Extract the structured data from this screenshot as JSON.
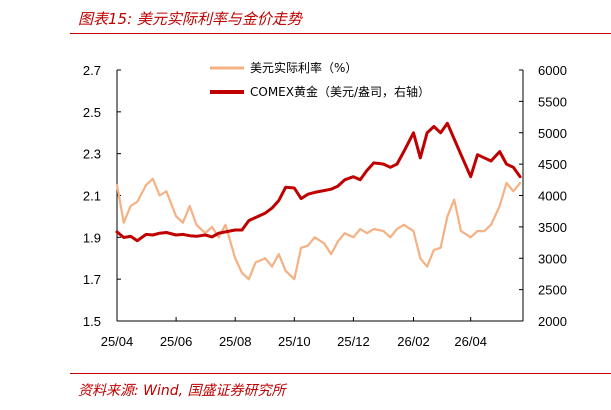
{
  "figure": {
    "title": "图表15:  美元实际利率与金价走势",
    "source": "资料来源:  Wind,  国盛证券研究所"
  },
  "colors": {
    "accent": "#c00000",
    "real_rate": "#f4b183",
    "gold": "#c00000",
    "axis": "#000000"
  },
  "chart_data": {
    "type": "line",
    "x_ticks": [
      "25/04",
      "25/06",
      "25/08",
      "25/10",
      "25/12",
      "26/02",
      "26/04"
    ],
    "y_left": {
      "range": [
        1.5,
        2.7
      ],
      "ticks": [
        "1.5",
        "1.7",
        "1.9",
        "2.1",
        "2.3",
        "2.5",
        "2.7"
      ]
    },
    "y_right": {
      "range": [
        2000,
        6000
      ],
      "ticks": [
        "2000",
        "2500",
        "3000",
        "3500",
        "4000",
        "4500",
        "5000",
        "5500",
        "6000"
      ]
    },
    "legend_placement": "top-center",
    "series": [
      {
        "name": "美元实际利率（%）",
        "axis": "left",
        "x": [
          "2025-04-01",
          "2025-04-08",
          "2025-04-15",
          "2025-04-22",
          "2025-05-01",
          "2025-05-08",
          "2025-05-15",
          "2025-05-22",
          "2025-06-01",
          "2025-06-08",
          "2025-06-15",
          "2025-06-22",
          "2025-07-01",
          "2025-07-08",
          "2025-07-15",
          "2025-07-22",
          "2025-08-01",
          "2025-08-08",
          "2025-08-15",
          "2025-08-22",
          "2025-09-01",
          "2025-09-08",
          "2025-09-15",
          "2025-09-22",
          "2025-10-01",
          "2025-10-08",
          "2025-10-15",
          "2025-10-22",
          "2025-11-01",
          "2025-11-08",
          "2025-11-15",
          "2025-11-22",
          "2025-12-01",
          "2025-12-08",
          "2025-12-15",
          "2025-12-22",
          "2026-01-01",
          "2026-01-08",
          "2026-01-15",
          "2026-01-22",
          "2026-02-01",
          "2026-02-08",
          "2026-02-15",
          "2026-02-22",
          "2026-03-01",
          "2026-03-08",
          "2026-03-15",
          "2026-03-22",
          "2026-04-01",
          "2026-04-08",
          "2026-04-15",
          "2026-04-22",
          "2026-05-01",
          "2026-05-08",
          "2026-05-15",
          "2026-05-22"
        ],
        "y": [
          2.15,
          1.97,
          2.05,
          2.07,
          2.15,
          2.18,
          2.1,
          2.12,
          2.0,
          1.97,
          2.05,
          1.96,
          1.92,
          1.95,
          1.9,
          1.96,
          1.8,
          1.73,
          1.7,
          1.78,
          1.8,
          1.76,
          1.82,
          1.74,
          1.7,
          1.85,
          1.86,
          1.9,
          1.87,
          1.82,
          1.88,
          1.92,
          1.9,
          1.94,
          1.92,
          1.94,
          1.93,
          1.9,
          1.94,
          1.96,
          1.93,
          1.8,
          1.76,
          1.84,
          1.85,
          2.0,
          2.08,
          1.93,
          1.9,
          1.93,
          1.93,
          1.96,
          2.05,
          2.16,
          2.12,
          2.16
        ]
      },
      {
        "name": "COMEX黄金（美元/盎司，右轴）",
        "axis": "right",
        "x": [
          "2025-04-01",
          "2025-04-08",
          "2025-04-15",
          "2025-04-22",
          "2025-05-01",
          "2025-05-08",
          "2025-05-15",
          "2025-05-22",
          "2025-06-01",
          "2025-06-08",
          "2025-06-15",
          "2025-06-22",
          "2025-07-01",
          "2025-07-08",
          "2025-07-15",
          "2025-07-22",
          "2025-08-01",
          "2025-08-08",
          "2025-08-15",
          "2025-08-22",
          "2025-09-01",
          "2025-09-08",
          "2025-09-15",
          "2025-09-22",
          "2025-10-01",
          "2025-10-08",
          "2025-10-15",
          "2025-10-22",
          "2025-11-01",
          "2025-11-08",
          "2025-11-15",
          "2025-11-22",
          "2025-12-01",
          "2025-12-08",
          "2025-12-15",
          "2025-12-22",
          "2026-01-01",
          "2026-01-08",
          "2026-01-15",
          "2026-01-22",
          "2026-02-01",
          "2026-02-08",
          "2026-02-15",
          "2026-02-22",
          "2026-03-01",
          "2026-03-08",
          "2026-03-15",
          "2026-03-22",
          "2026-04-01",
          "2026-04-08",
          "2026-04-15",
          "2026-04-22",
          "2026-05-01",
          "2026-05-08",
          "2026-05-15",
          "2026-05-22"
        ],
        "y": [
          3420,
          3330,
          3350,
          3280,
          3380,
          3370,
          3400,
          3410,
          3370,
          3380,
          3360,
          3350,
          3370,
          3340,
          3400,
          3420,
          3450,
          3450,
          3600,
          3650,
          3720,
          3800,
          3920,
          4130,
          4120,
          3950,
          4020,
          4050,
          4080,
          4100,
          4150,
          4250,
          4300,
          4250,
          4400,
          4520,
          4500,
          4450,
          4500,
          4700,
          5000,
          4600,
          5000,
          5100,
          5000,
          5150,
          4900,
          4650,
          4300,
          4650,
          4600,
          4550,
          4700,
          4500,
          4450,
          4300
        ]
      }
    ]
  }
}
